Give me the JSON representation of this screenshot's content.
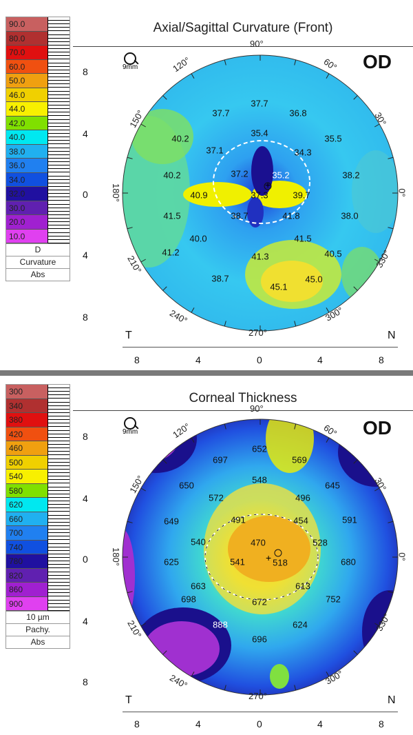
{
  "top": {
    "title": "Axial/Sagittal Curvature (Front)",
    "eye": "OD",
    "zoom_label": "9mm",
    "legend": {
      "values": [
        "90.0",
        "80.0",
        "70.0",
        "60.0",
        "50.0",
        "46.0",
        "44.0",
        "42.0",
        "40.0",
        "38.0",
        "36.0",
        "34.0",
        "32.0",
        "30.0",
        "20.0",
        "10.0"
      ],
      "colors": [
        "#c86060",
        "#b03030",
        "#e01010",
        "#f05010",
        "#f0a010",
        "#f0d000",
        "#f8f000",
        "#80e000",
        "#00e8f0",
        "#20b0f0",
        "#2080f0",
        "#1050e0",
        "#2010a0",
        "#6020b0",
        "#a020d0",
        "#e040f0"
      ],
      "unit": "D",
      "label1": "Curvature",
      "label2": "Abs"
    },
    "angles": {
      "a90": "90°",
      "a60": "60°",
      "a30": "30°",
      "a0": "0°",
      "a330": "330°",
      "a300": "300°",
      "a270": "270°",
      "a240": "240°",
      "a210": "210°",
      "a180": "180°",
      "a150": "150°",
      "a120": "120°"
    },
    "axis_y": [
      "8",
      "4",
      "0",
      "4",
      "8"
    ],
    "axis_x": [
      "8",
      "4",
      "0",
      "4",
      "8"
    ],
    "side_left": "T",
    "side_right": "N",
    "values": [
      "37.7",
      "37.7",
      "36.8",
      "40.2",
      "35.4",
      "35.5",
      "37.1",
      "34.3",
      "40.2",
      "37.2",
      "35.2",
      "38.2",
      "40.9",
      "37.3",
      "39.7",
      "41.5",
      "38.7",
      "41.8",
      "38.0",
      "40.0",
      "41.5",
      "41.2",
      "41.3",
      "40.5",
      "38.7",
      "45.1",
      "45.0"
    ]
  },
  "bottom": {
    "title": "Corneal Thickness",
    "eye": "OD",
    "zoom_label": "9mm",
    "legend": {
      "values": [
        "300",
        "340",
        "380",
        "420",
        "460",
        "500",
        "540",
        "580",
        "620",
        "660",
        "700",
        "740",
        "780",
        "820",
        "860",
        "900"
      ],
      "colors": [
        "#c86060",
        "#b03030",
        "#e01010",
        "#f05010",
        "#f0a010",
        "#f0d000",
        "#f8f000",
        "#80e000",
        "#00e8f0",
        "#20b0f0",
        "#2080f0",
        "#1050e0",
        "#2010a0",
        "#6020b0",
        "#a020d0",
        "#e040f0"
      ],
      "unit": "10 µm",
      "label1": "Pachy.",
      "label2": "Abs"
    },
    "angles": {
      "a90": "90°",
      "a60": "60°",
      "a30": "30°",
      "a0": "0°",
      "a330": "330°",
      "a300": "300°",
      "a270": "270°",
      "a240": "240°",
      "a210": "210°",
      "a180": "180°",
      "a150": "150°",
      "a120": "120°"
    },
    "axis_y": [
      "8",
      "4",
      "0",
      "4",
      "8"
    ],
    "axis_x": [
      "8",
      "4",
      "0",
      "4",
      "8"
    ],
    "side_left": "T",
    "side_right": "N",
    "values": [
      "697",
      "652",
      "569",
      "650",
      "548",
      "645",
      "572",
      "496",
      "649",
      "491",
      "454",
      "591",
      "540",
      "470",
      "528",
      "625",
      "541",
      "518",
      "680",
      "663",
      "613",
      "698",
      "672",
      "752",
      "888",
      "696",
      "624"
    ]
  }
}
